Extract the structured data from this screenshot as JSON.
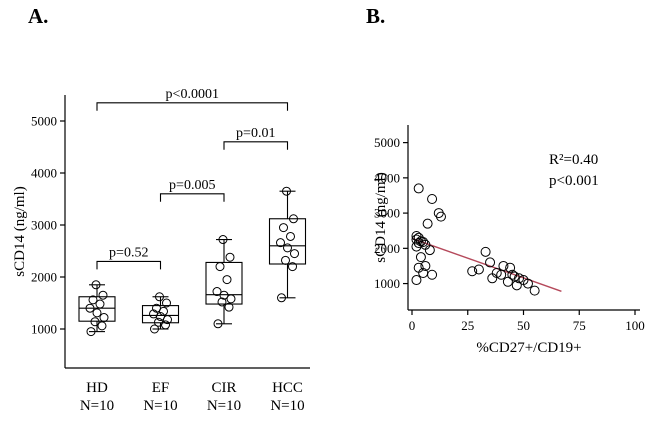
{
  "chart_data": [
    {
      "type": "box",
      "panel_label": "A.",
      "ylabel": "sCD14 (ng/ml)",
      "ylim": [
        250,
        5500
      ],
      "yticks": [
        1000,
        2000,
        3000,
        4000,
        5000
      ],
      "groups": [
        {
          "label": "HD",
          "sublabel": "N=10",
          "whisker_low": 950,
          "q1": 1150,
          "median": 1400,
          "q3": 1620,
          "whisker_high": 1850,
          "points": [
            950,
            1060,
            1140,
            1220,
            1310,
            1400,
            1480,
            1560,
            1650,
            1850
          ]
        },
        {
          "label": "EF",
          "sublabel": "N=10",
          "whisker_low": 1000,
          "q1": 1120,
          "median": 1260,
          "q3": 1450,
          "whisker_high": 1620,
          "points": [
            1000,
            1080,
            1130,
            1180,
            1240,
            1290,
            1340,
            1400,
            1500,
            1620
          ]
        },
        {
          "label": "CIR",
          "sublabel": "N=10",
          "whisker_low": 1100,
          "q1": 1480,
          "median": 1660,
          "q3": 2280,
          "whisker_high": 2720,
          "points": [
            1100,
            1420,
            1520,
            1580,
            1650,
            1720,
            1950,
            2200,
            2380,
            2720
          ]
        },
        {
          "label": "HCC",
          "sublabel": "N=10",
          "whisker_low": 1600,
          "q1": 2250,
          "median": 2600,
          "q3": 3120,
          "whisker_high": 3650,
          "points": [
            1600,
            2200,
            2320,
            2450,
            2560,
            2660,
            2780,
            2950,
            3120,
            3650
          ]
        }
      ],
      "brackets": [
        {
          "from": 0,
          "to": 1,
          "y": 2300,
          "label": "p=0.52"
        },
        {
          "from": 1,
          "to": 2,
          "y": 3600,
          "label": "p=0.005"
        },
        {
          "from": 2,
          "to": 3,
          "y": 4600,
          "label": "p=0.01"
        },
        {
          "from": 0,
          "to": 3,
          "y": 5350,
          "label": "p<0.0001"
        }
      ]
    },
    {
      "type": "scatter",
      "panel_label": "B.",
      "xlabel": "%CD27+/CD19+",
      "ylabel": "sCD14 (ng/ml)",
      "xlim": [
        0,
        100
      ],
      "ylim": [
        250,
        5500
      ],
      "xticks": [
        0,
        25,
        50,
        75,
        100
      ],
      "yticks": [
        1000,
        2000,
        3000,
        4000,
        5000
      ],
      "annotations": [
        "R²=0.40",
        "p<0.001"
      ],
      "regression": {
        "x1": 0,
        "y1": 2280,
        "x2": 67,
        "y2": 780,
        "color": "#b5495b"
      },
      "points": [
        [
          3,
          3700
        ],
        [
          9,
          3400
        ],
        [
          12,
          3000
        ],
        [
          13,
          2900
        ],
        [
          7,
          2700
        ],
        [
          2,
          2350
        ],
        [
          3,
          2300
        ],
        [
          2,
          2250
        ],
        [
          4,
          2200
        ],
        [
          5,
          2180
        ],
        [
          3,
          2150
        ],
        [
          6,
          2100
        ],
        [
          2,
          2050
        ],
        [
          8,
          1950
        ],
        [
          4,
          1750
        ],
        [
          6,
          1500
        ],
        [
          3,
          1450
        ],
        [
          5,
          1300
        ],
        [
          9,
          1250
        ],
        [
          2,
          1100
        ],
        [
          27,
          1350
        ],
        [
          30,
          1400
        ],
        [
          33,
          1900
        ],
        [
          35,
          1600
        ],
        [
          36,
          1150
        ],
        [
          38,
          1300
        ],
        [
          40,
          1250
        ],
        [
          41,
          1500
        ],
        [
          43,
          1050
        ],
        [
          44,
          1450
        ],
        [
          45,
          1250
        ],
        [
          46,
          1200
        ],
        [
          47,
          950
        ],
        [
          48,
          1150
        ],
        [
          50,
          1100
        ],
        [
          52,
          1000
        ],
        [
          55,
          800
        ]
      ]
    }
  ]
}
